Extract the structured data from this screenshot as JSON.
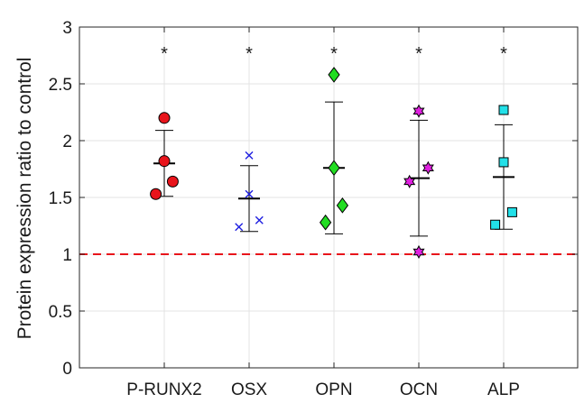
{
  "chart_data": {
    "type": "scatter",
    "title": "",
    "xlabel": "",
    "ylabel": "Protein expression ratio to control",
    "ylim": [
      0,
      3
    ],
    "yticks": [
      0,
      0.5,
      1,
      1.5,
      2,
      2.5,
      3
    ],
    "ytick_labels": [
      "0",
      "0.5",
      "1",
      "1.5",
      "2",
      "2.5",
      "3"
    ],
    "grid": true,
    "reference_line": {
      "y": 1,
      "color": "#e8141b",
      "style": "dashed"
    },
    "categories": [
      "P-RUNX2",
      "OSX",
      "OPN",
      "OCN",
      "ALP"
    ],
    "series": [
      {
        "category": "P-RUNX2",
        "marker": "circle",
        "color": "#e8141b",
        "points": [
          {
            "offset": 0.0,
            "y": 2.2
          },
          {
            "offset": 0.0,
            "y": 1.82
          },
          {
            "offset": 0.1,
            "y": 1.64
          },
          {
            "offset": -0.1,
            "y": 1.53
          }
        ],
        "mean": 1.8,
        "error": [
          1.51,
          2.09
        ],
        "significance": "*"
      },
      {
        "category": "OSX",
        "marker": "x",
        "color": "#1f1fe0",
        "points": [
          {
            "offset": 0.0,
            "y": 1.87
          },
          {
            "offset": 0.0,
            "y": 1.53
          },
          {
            "offset": 0.12,
            "y": 1.3
          },
          {
            "offset": -0.12,
            "y": 1.24
          }
        ],
        "mean": 1.49,
        "error": [
          1.2,
          1.78
        ],
        "significance": "*"
      },
      {
        "category": "OPN",
        "marker": "diamond",
        "color": "#22dd22",
        "points": [
          {
            "offset": 0.0,
            "y": 2.58
          },
          {
            "offset": 0.0,
            "y": 1.76
          },
          {
            "offset": 0.1,
            "y": 1.43
          },
          {
            "offset": -0.1,
            "y": 1.28
          }
        ],
        "mean": 1.76,
        "error": [
          1.18,
          2.34
        ],
        "significance": "*"
      },
      {
        "category": "OCN",
        "marker": "hexagram",
        "color": "#e020e0",
        "points": [
          {
            "offset": 0.0,
            "y": 2.26
          },
          {
            "offset": 0.11,
            "y": 1.76
          },
          {
            "offset": -0.11,
            "y": 1.64
          },
          {
            "offset": 0.0,
            "y": 1.02
          }
        ],
        "mean": 1.67,
        "error": [
          1.16,
          2.18
        ],
        "significance": "*"
      },
      {
        "category": "ALP",
        "marker": "square",
        "color": "#22e0e8",
        "points": [
          {
            "offset": 0.0,
            "y": 2.27
          },
          {
            "offset": 0.0,
            "y": 1.81
          },
          {
            "offset": 0.1,
            "y": 1.37
          },
          {
            "offset": -0.1,
            "y": 1.26
          }
        ],
        "mean": 1.68,
        "error": [
          1.22,
          2.14
        ],
        "significance": "*"
      }
    ]
  }
}
